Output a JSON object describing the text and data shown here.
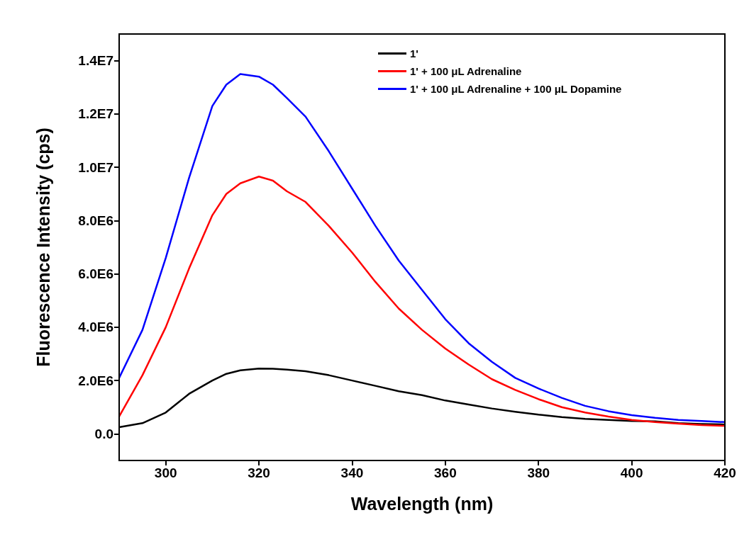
{
  "chart_data": {
    "type": "line",
    "xlabel": "Wavelength (nm)",
    "ylabel": "Fluorescence Intensity (cps)",
    "xlim": [
      290,
      420
    ],
    "xticks": [
      300,
      320,
      340,
      360,
      380,
      400,
      420
    ],
    "ylim": [
      -1000000,
      15000000
    ],
    "yticks": [
      {
        "value": 0,
        "label": "0.0"
      },
      {
        "value": 2000000,
        "label": "2.0E6"
      },
      {
        "value": 4000000,
        "label": "4.0E6"
      },
      {
        "value": 6000000,
        "label": "6.0E6"
      },
      {
        "value": 8000000,
        "label": "8.0E6"
      },
      {
        "value": 10000000,
        "label": "1.0E7"
      },
      {
        "value": 12000000,
        "label": "1.2E7"
      },
      {
        "value": 14000000,
        "label": "1.4E7"
      }
    ],
    "grid": false,
    "legend": "top right",
    "marker": "none",
    "line_style": "solid",
    "x": [
      290,
      295,
      300,
      305,
      310,
      313,
      316,
      320,
      323,
      326,
      330,
      335,
      340,
      345,
      350,
      355,
      360,
      365,
      370,
      375,
      380,
      385,
      390,
      395,
      400,
      405,
      410,
      415,
      420
    ],
    "series": [
      {
        "name": "1'",
        "color": "#000000",
        "values": [
          250000,
          400000,
          800000,
          1500000,
          2000000,
          2250000,
          2380000,
          2450000,
          2440000,
          2410000,
          2350000,
          2200000,
          2000000,
          1800000,
          1600000,
          1450000,
          1250000,
          1100000,
          950000,
          830000,
          720000,
          630000,
          560000,
          520000,
          480000,
          470000,
          400000,
          370000,
          350000
        ]
      },
      {
        "name": "1' + 100 μL Adrenaline",
        "color": "#ff0000",
        "values": [
          650000,
          2200000,
          4000000,
          6200000,
          8200000,
          9000000,
          9400000,
          9650000,
          9500000,
          9100000,
          8700000,
          7800000,
          6800000,
          5700000,
          4700000,
          3900000,
          3200000,
          2600000,
          2050000,
          1650000,
          1300000,
          1000000,
          800000,
          650000,
          520000,
          440000,
          380000,
          330000,
          300000
        ]
      },
      {
        "name": "1' + 100 μL Adrenaline + 100 μL Dopamine",
        "color": "#0000ff",
        "values": [
          2100000,
          3900000,
          6600000,
          9600000,
          12300000,
          13100000,
          13500000,
          13400000,
          13100000,
          12600000,
          11900000,
          10600000,
          9200000,
          7800000,
          6500000,
          5400000,
          4300000,
          3400000,
          2700000,
          2100000,
          1700000,
          1350000,
          1050000,
          850000,
          700000,
          600000,
          520000,
          480000,
          440000
        ]
      }
    ]
  }
}
